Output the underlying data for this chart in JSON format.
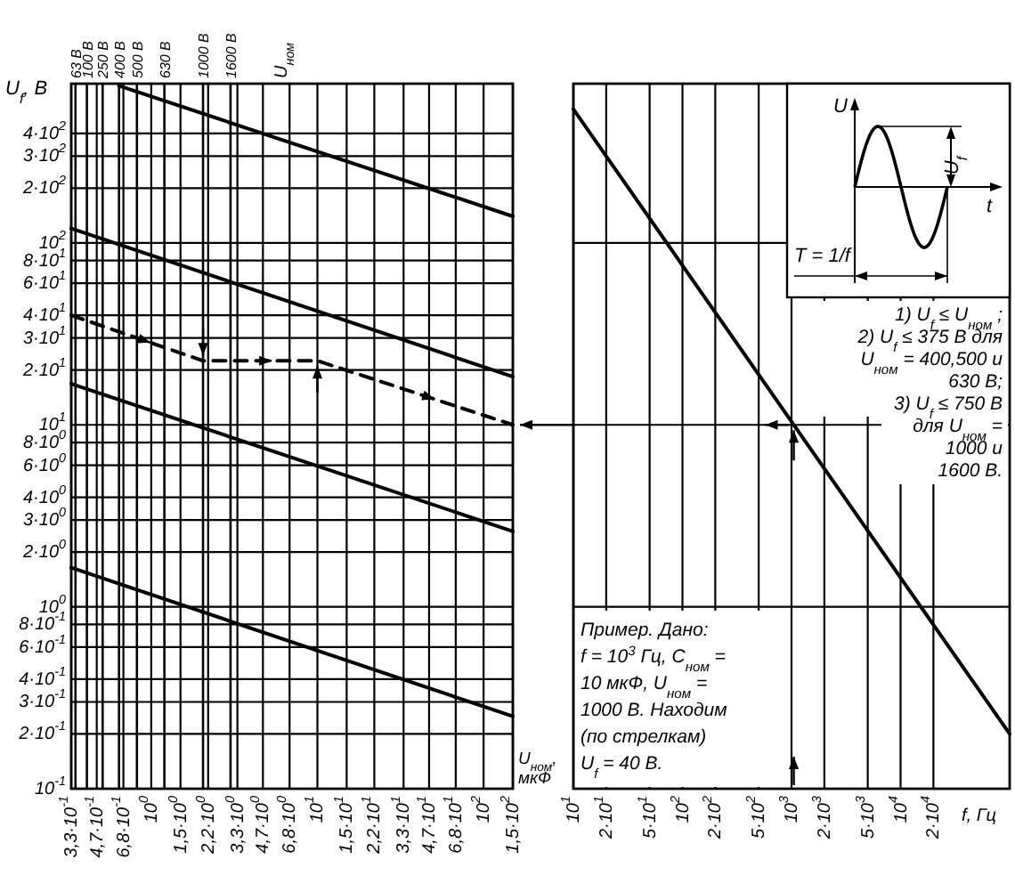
{
  "chart_data": [
    {
      "type": "line",
      "ylabel": "U$_{f}$, В",
      "xlabel": "U$_{ном}$, мкФ",
      "annotations": [
        "U$_{ном}$"
      ],
      "log": "xy",
      "grid": true,
      "xlim": [
        0.33,
        150
      ],
      "ylim": [
        0.1,
        750
      ],
      "xticks": [
        {
          "value": 0.33,
          "label": "3,3·10$^{-1}$"
        },
        {
          "value": 0.47,
          "label": "4,7·10$^{-1}$"
        },
        {
          "value": 0.68,
          "label": "6,8·10$^{-1}$"
        },
        {
          "value": 1,
          "label": "10$^{0}$"
        },
        {
          "value": 1.5,
          "label": "1,5·10$^{0}$"
        },
        {
          "value": 2.2,
          "label": "2,2·10$^{0}$"
        },
        {
          "value": 3.3,
          "label": "3,3·10$^{0}$"
        },
        {
          "value": 4.7,
          "label": "4,7·10$^{0}$"
        },
        {
          "value": 6.8,
          "label": "6,8·10$^{0}$"
        },
        {
          "value": 10,
          "label": "10$^{1}$"
        },
        {
          "value": 15,
          "label": "1,5·10$^{1}$"
        },
        {
          "value": 22,
          "label": "2,2·10$^{1}$"
        },
        {
          "value": 33,
          "label": "3,3·10$^{1}$"
        },
        {
          "value": 47,
          "label": "4,7·10$^{1}$"
        },
        {
          "value": 68,
          "label": "6,8·10$^{1}$"
        },
        {
          "value": 100,
          "label": "10$^{2}$"
        },
        {
          "value": 150,
          "label": "1,5·10$^{2}$"
        }
      ],
      "yticks": [
        {
          "value": 0.1,
          "label": "10$^{-1}$"
        },
        {
          "value": 0.2,
          "label": "2·10$^{-1}$"
        },
        {
          "value": 0.3,
          "label": "3·10$^{-1}$"
        },
        {
          "value": 0.4,
          "label": "4·10$^{-1}$"
        },
        {
          "value": 0.6,
          "label": "6·10$^{-1}$"
        },
        {
          "value": 0.8,
          "label": "8·10$^{-1}$"
        },
        {
          "value": 1,
          "label": "10$^{0}$"
        },
        {
          "value": 2,
          "label": "2·10$^{0}$"
        },
        {
          "value": 3,
          "label": "3·10$^{0}$"
        },
        {
          "value": 4,
          "label": "4·10$^{0}$"
        },
        {
          "value": 6,
          "label": "6·10$^{0}$"
        },
        {
          "value": 8,
          "label": "8·10$^{0}$"
        },
        {
          "value": 10,
          "label": "10$^{1}$"
        },
        {
          "value": 20,
          "label": "2·10$^{1}$"
        },
        {
          "value": 30,
          "label": "3·10$^{1}$"
        },
        {
          "value": 40,
          "label": "4·10$^{1}$"
        },
        {
          "value": 60,
          "label": "6·10$^{1}$"
        },
        {
          "value": 80,
          "label": "8·10$^{1}$"
        },
        {
          "value": 100,
          "label": "10$^{2}$"
        },
        {
          "value": 200,
          "label": "2·10$^{2}$"
        },
        {
          "value": 300,
          "label": "3·10$^{2}$"
        },
        {
          "value": 400,
          "label": "4·10$^{2}$"
        }
      ],
      "ref_lines": [
        {
          "axis": "x",
          "value": 0.35,
          "label": "63 В"
        },
        {
          "axis": "x",
          "value": 0.41,
          "label": "100 В"
        },
        {
          "axis": "x",
          "value": 0.51,
          "label": "250 В"
        },
        {
          "axis": "x",
          "value": 0.64,
          "label": "400 В"
        },
        {
          "axis": "x",
          "value": 0.82,
          "label": "500 В"
        },
        {
          "axis": "x",
          "value": 1.2,
          "label": "630 В"
        },
        {
          "axis": "x",
          "value": 2.05,
          "label": "1000 В"
        },
        {
          "axis": "x",
          "value": 3.0,
          "label": "1600 В"
        }
      ],
      "series": [
        {
          "color": "#000000",
          "x": [
            0.64,
            150
          ],
          "values": [
            730,
            140
          ]
        },
        {
          "color": "#000000",
          "x": [
            0.33,
            150
          ],
          "values": [
            120,
            18.4
          ]
        },
        {
          "color": "#000000",
          "x": [
            0.33,
            150
          ],
          "values": [
            16.8,
            2.6
          ]
        },
        {
          "color": "#000000",
          "x": [
            0.33,
            150
          ],
          "values": [
            1.64,
            0.25
          ]
        },
        {
          "color": "#000000",
          "x": [
            0.33,
            2.05,
            10,
            150
          ],
          "values": [
            40,
            22.5,
            22.5,
            10
          ],
          "line_style": "dashed"
        }
      ]
    },
    {
      "type": "line",
      "xlabel": "f, Гц",
      "log": "xy",
      "grid": true,
      "tick_labels": "x",
      "xlim": [
        10,
        100000
      ],
      "ylim": [
        0.1,
        750
      ],
      "xticks": [
        {
          "value": 10,
          "label": "10$^{1}$"
        },
        {
          "value": 20,
          "label": "2·10$^{1}$"
        },
        {
          "value": 50,
          "label": "5·10$^{1}$"
        },
        {
          "value": 100,
          "label": "10$^{2}$"
        },
        {
          "value": 200,
          "label": "2·10$^{2}$"
        },
        {
          "value": 500,
          "label": "5·10$^{2}$"
        },
        {
          "value": 1000,
          "label": "10$^{3}$"
        },
        {
          "value": 2000,
          "label": "2·10$^{3}$"
        },
        {
          "value": 5000,
          "label": "5·10$^{3}$"
        },
        {
          "value": 10000,
          "label": "10$^{4}$"
        },
        {
          "value": 20000,
          "label": "2·10$^{4}$"
        }
      ],
      "yticks": [
        {
          "value": 1,
          "label": null
        },
        {
          "value": 10,
          "label": null
        },
        {
          "value": 100,
          "label": null
        }
      ],
      "series": [
        {
          "color": "#000000",
          "x": [
            10,
            100000
          ],
          "values": [
            543,
            0.2
          ]
        }
      ],
      "annotations": [
        "1) U$_{f}$ ≤ U$_{ном}$ ;\n2) U$_{f}$ ≤ 375 В для\nU$_{ном}$ = 400,500 и\n630 В;\n3) U$_{f}$ ≤ 750 В\nдля U$_{ном}$ =\n1000 и\n1600 В.",
        "Пример. Дано:\nf = 10$^{3}$ Гц, C$_{ном}$ =\n10 мкФ, U$_{ном}$ =\n1000 В. Находим\n(по стрелкам)\nU$_{f}$ = 40 В.",
        "U",
        "t",
        "U$_{f}$",
        "T = 1/f"
      ]
    }
  ]
}
